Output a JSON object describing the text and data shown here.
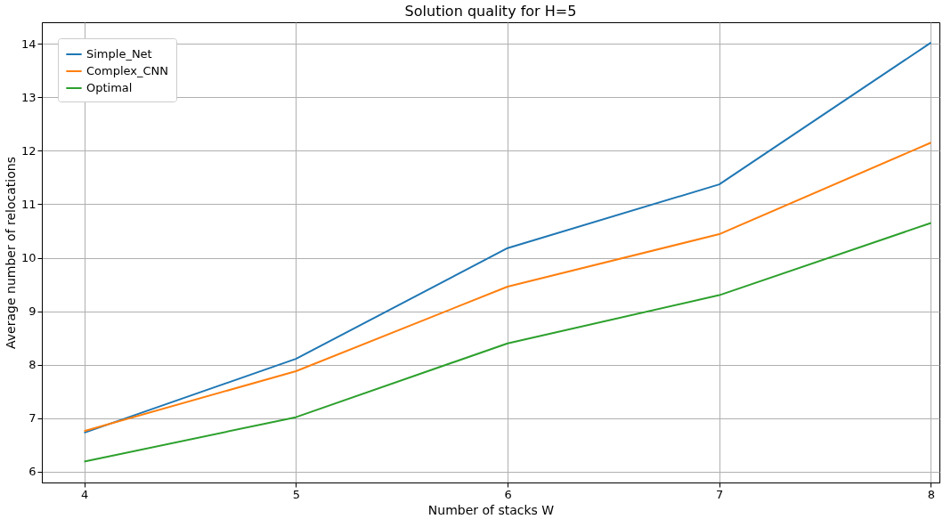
{
  "chart_data": {
    "type": "line",
    "title": "Solution quality for H=5",
    "xlabel": "Number of stacks W",
    "ylabel": "Average number of relocations",
    "x": [
      4,
      5,
      6,
      7,
      8
    ],
    "series": [
      {
        "name": "Simple_Net",
        "color": "#1f77b4",
        "values": [
          6.73,
          8.11,
          10.18,
          11.37,
          14.02
        ]
      },
      {
        "name": "Complex_CNN",
        "color": "#ff7f0e",
        "values": [
          6.76,
          7.88,
          9.46,
          10.44,
          12.15
        ]
      },
      {
        "name": "Optimal",
        "color": "#2ca02c",
        "values": [
          6.19,
          7.02,
          8.4,
          9.3,
          10.65
        ]
      }
    ],
    "xlim": [
      3.8,
      8.04
    ],
    "ylim": [
      5.8,
      14.4
    ],
    "xticks": [
      4,
      5,
      6,
      7,
      8
    ],
    "yticks": [
      6,
      7,
      8,
      9,
      10,
      11,
      12,
      13,
      14
    ],
    "grid": true,
    "legend": "top left",
    "marker": "none",
    "line_style": "solid"
  }
}
